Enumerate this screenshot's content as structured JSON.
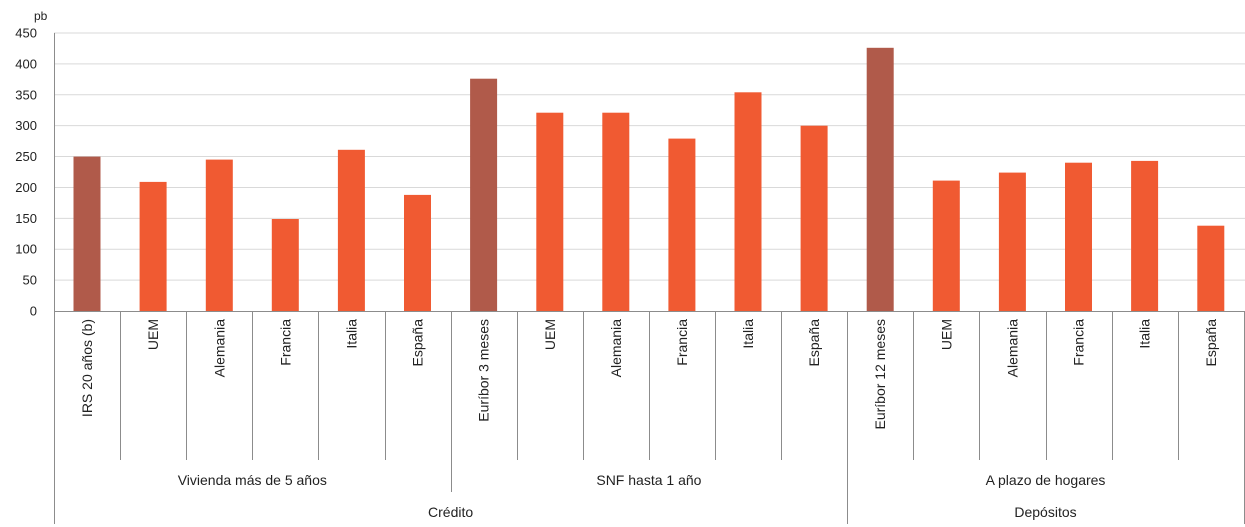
{
  "chart_data": {
    "type": "bar",
    "unit_label": "pb",
    "ylim": [
      0,
      450
    ],
    "yticks": [
      0,
      50,
      100,
      150,
      200,
      250,
      300,
      350,
      400,
      450
    ],
    "grid": true,
    "colors": {
      "benchmark": "#b05a4a",
      "country": "#f05a32",
      "grid": "#d9d9d9",
      "axis": "#8c8c8c"
    },
    "categories": [
      "IRS 20 años (b)",
      "UEM",
      "Alemania",
      "Francia",
      "Italia",
      "España",
      "Euríbor 3 meses",
      "UEM",
      "Alemania",
      "Francia",
      "Italia",
      "España",
      "Euríbor 12 meses",
      "UEM",
      "Alemania",
      "Francia",
      "Italia",
      "España"
    ],
    "values": [
      250,
      209,
      245,
      149,
      261,
      188,
      376,
      321,
      321,
      279,
      354,
      300,
      426,
      211,
      224,
      240,
      243,
      138
    ],
    "bar_kind": [
      "benchmark",
      "country",
      "country",
      "country",
      "country",
      "country",
      "benchmark",
      "country",
      "country",
      "country",
      "country",
      "country",
      "benchmark",
      "country",
      "country",
      "country",
      "country",
      "country"
    ],
    "groups": [
      {
        "label": "Vivienda más de 5 años",
        "start": 0,
        "end": 5
      },
      {
        "label": "SNF hasta 1 año",
        "start": 6,
        "end": 11
      },
      {
        "label": "A plazo de hogares",
        "start": 12,
        "end": 17
      }
    ],
    "supergroups": [
      {
        "label": "Crédito",
        "start": 0,
        "end": 11
      },
      {
        "label": "Depósitos",
        "start": 12,
        "end": 17
      }
    ]
  }
}
